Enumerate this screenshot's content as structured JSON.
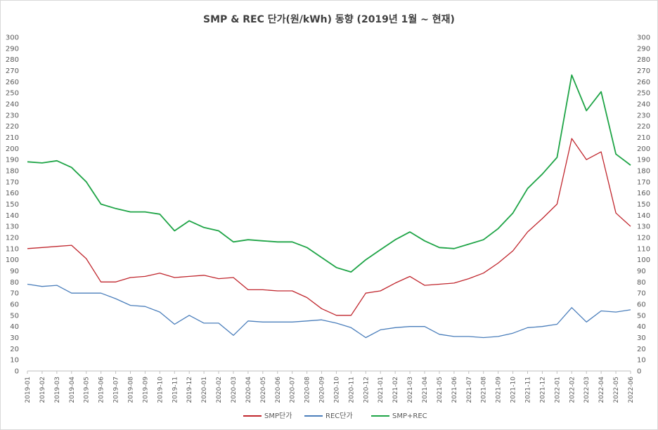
{
  "chart_data": {
    "type": "line",
    "title": "SMP & REC 단가(원/kWh) 동향 (2019년 1월 ~ 현재)",
    "ylim": [
      0,
      300
    ],
    "y_ticks": [
      0,
      10,
      20,
      30,
      40,
      50,
      60,
      70,
      80,
      90,
      100,
      110,
      120,
      130,
      140,
      150,
      160,
      170,
      180,
      190,
      200,
      210,
      220,
      230,
      240,
      250,
      260,
      270,
      280,
      290,
      300
    ],
    "secondary_y_axis": true,
    "grid": false,
    "legend_position": "bottom",
    "x": [
      "2019-01",
      "2019-02",
      "2019-03",
      "2019-04",
      "2019-05",
      "2019-06",
      "2019-07",
      "2019-08",
      "2019-09",
      "2019-10",
      "2019-11",
      "2019-12",
      "2020-01",
      "2020-02",
      "2020-03",
      "2020-04",
      "2020-05",
      "2020-06",
      "2020-07",
      "2020-08",
      "2020-09",
      "2020-10",
      "2020-11",
      "2020-12",
      "2021-01",
      "2021-02",
      "2021-03",
      "2021-04",
      "2021-05",
      "2021-06",
      "2021-07",
      "2021-08",
      "2021-09",
      "2021-10",
      "2021-11",
      "2021-12",
      "2022-01",
      "2022-02",
      "2022-03",
      "2022-04",
      "2022-05",
      "2022-06"
    ],
    "series": [
      {
        "name": "SMP단가",
        "color": "#c0262d",
        "values": [
          110,
          111,
          112,
          113,
          101,
          80,
          80,
          84,
          85,
          88,
          84,
          85,
          86,
          83,
          84,
          73,
          73,
          72,
          72,
          66,
          56,
          50,
          50,
          70,
          72,
          79,
          85,
          77,
          78,
          79,
          83,
          88,
          97,
          108,
          125,
          137,
          150,
          209,
          190,
          197,
          142,
          130
        ]
      },
      {
        "name": "REC단가",
        "color": "#4a7ebb",
        "values": [
          78,
          76,
          77,
          70,
          70,
          70,
          65,
          59,
          58,
          53,
          42,
          50,
          43,
          43,
          32,
          45,
          44,
          44,
          44,
          45,
          46,
          43,
          39,
          30,
          37,
          39,
          40,
          40,
          33,
          31,
          31,
          30,
          31,
          34,
          39,
          40,
          42,
          57,
          44,
          54,
          53,
          55
        ]
      },
      {
        "name": "SMP+REC",
        "color": "#1ea446",
        "values": [
          188,
          187,
          189,
          183,
          170,
          150,
          146,
          143,
          143,
          141,
          126,
          135,
          129,
          126,
          116,
          118,
          117,
          116,
          116,
          111,
          102,
          93,
          89,
          100,
          109,
          118,
          125,
          117,
          111,
          110,
          114,
          118,
          128,
          142,
          164,
          177,
          192,
          266,
          234,
          251,
          195,
          185
        ]
      }
    ]
  }
}
